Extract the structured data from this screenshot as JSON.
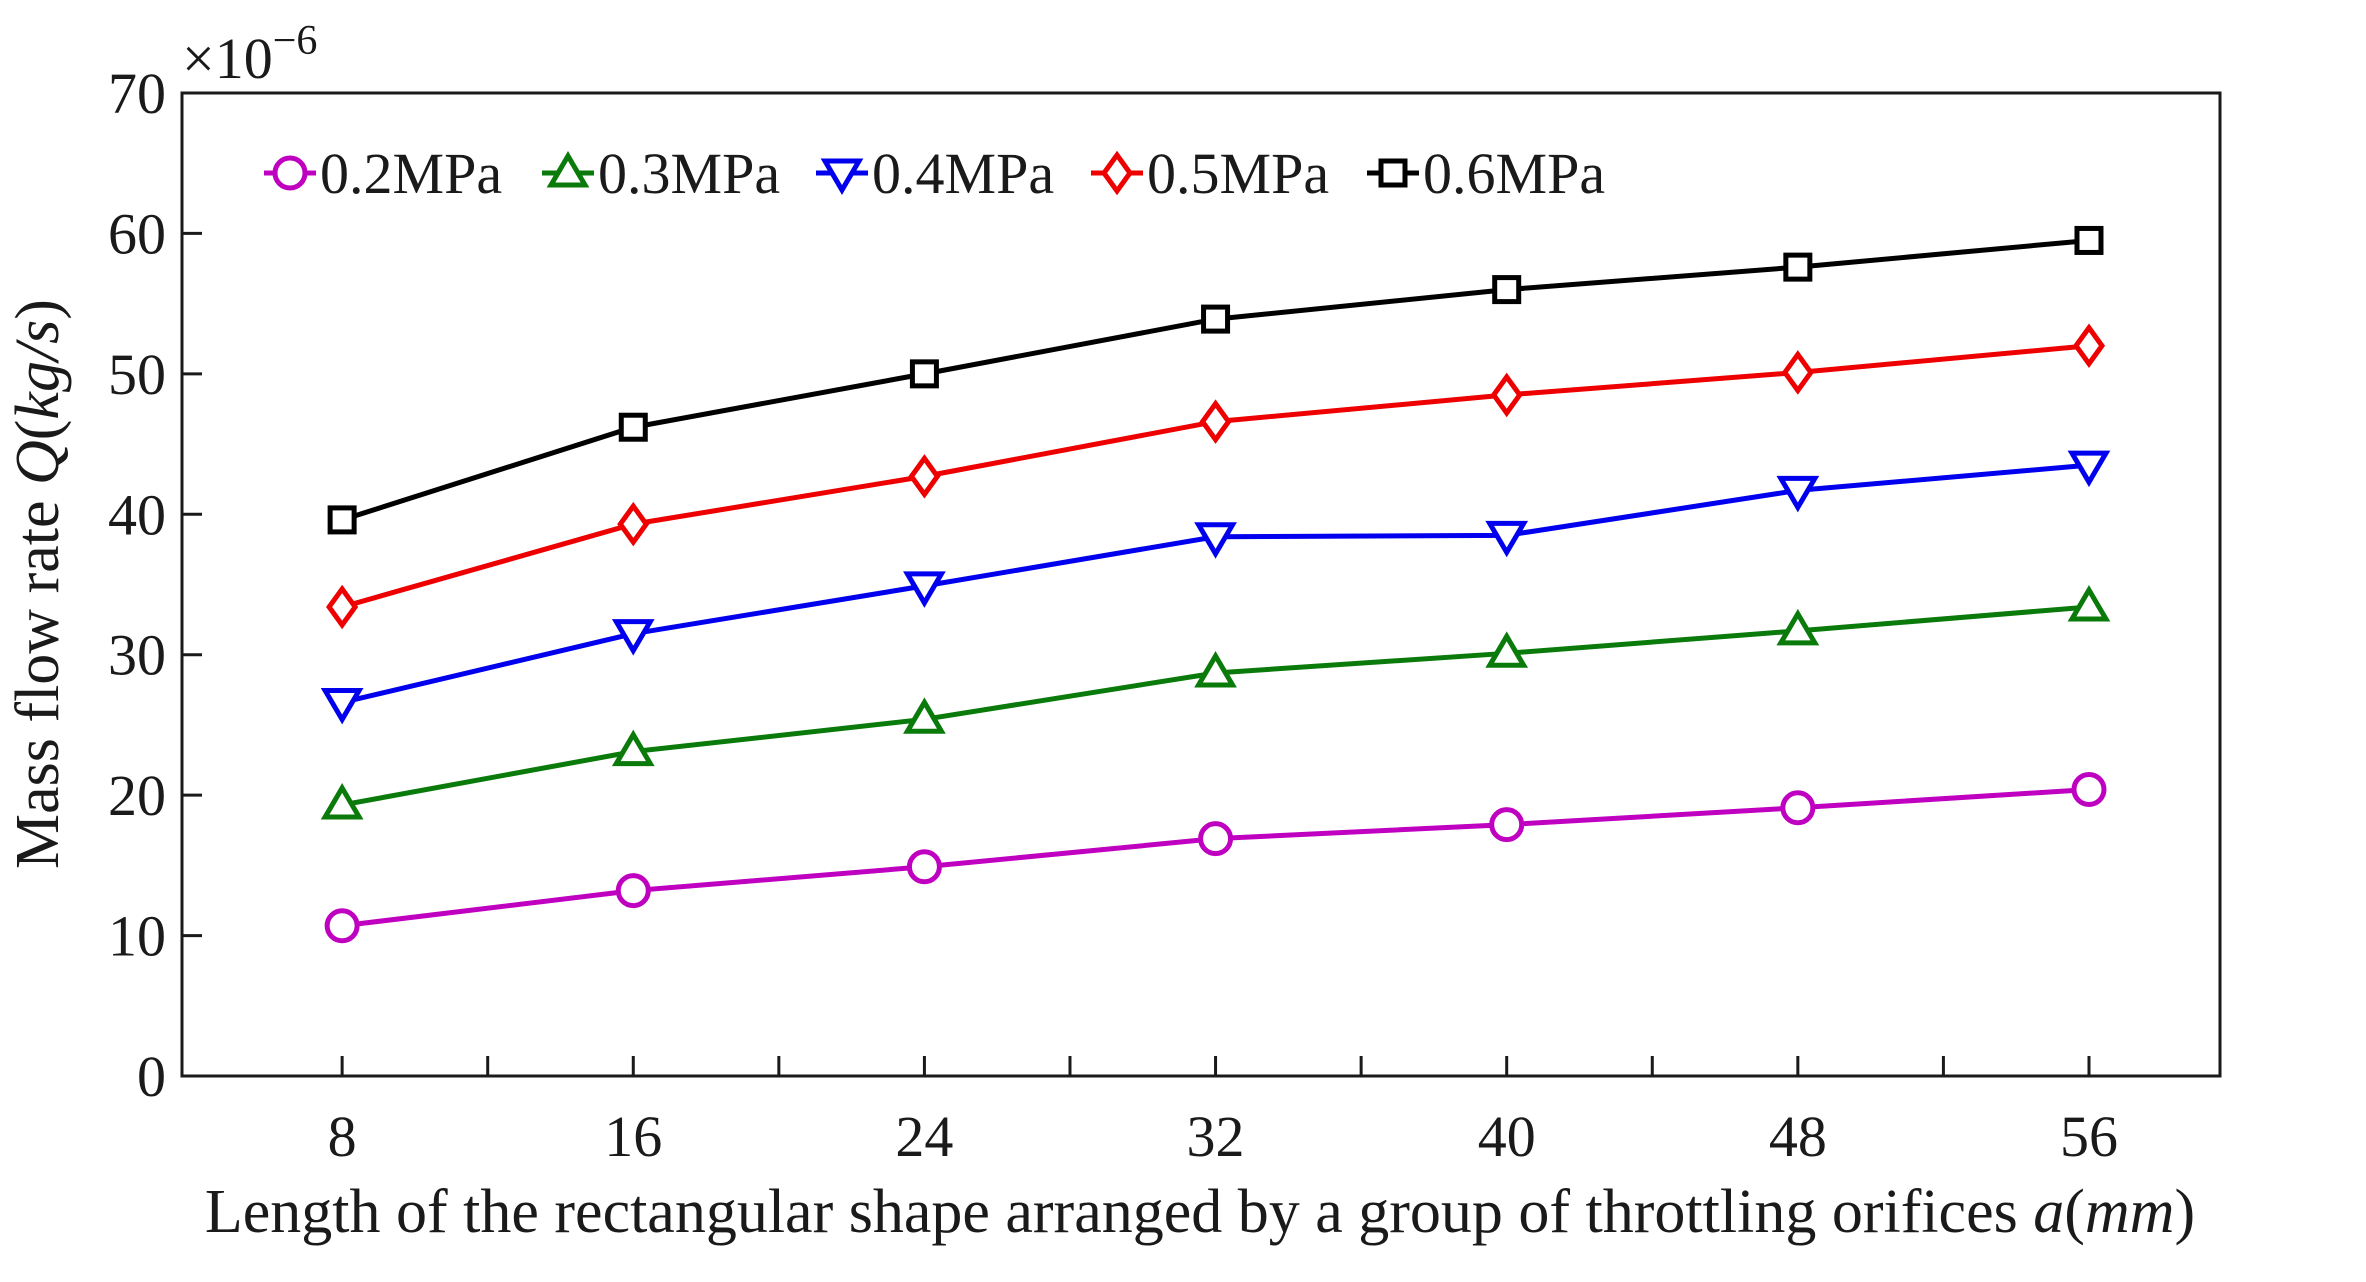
{
  "chart_data": {
    "type": "line",
    "title": "",
    "xlabel": {
      "main": "Length of the rectangular shape arranged by a group of throttling orifices ",
      "var": "a",
      "unit_open": "(",
      "unit": "mm",
      "unit_close": ")"
    },
    "ylabel": {
      "main": "Mass flow rate ",
      "var": "Q",
      "unit_open": "(",
      "unit": "kg/s",
      "unit_close": ")"
    },
    "y_multiplier": {
      "base": "×10",
      "exponent": "−6"
    },
    "x": [
      8,
      16,
      24,
      32,
      40,
      48,
      56
    ],
    "xlim": [
      3.6,
      59.6
    ],
    "ylim": [
      0,
      70
    ],
    "xticks": [
      8,
      12,
      16,
      20,
      24,
      28,
      32,
      36,
      40,
      44,
      48,
      52,
      56
    ],
    "xtick_labels": [
      "8",
      "",
      "16",
      "",
      "24",
      "",
      "32",
      "",
      "40",
      "",
      "48",
      "",
      "56"
    ],
    "yticks": [
      0,
      10,
      20,
      30,
      40,
      50,
      60,
      70
    ],
    "ytick_labels": [
      "0",
      "10",
      "20",
      "30",
      "40",
      "50",
      "60",
      "70"
    ],
    "grid": false,
    "legend_position": "top-left",
    "series": [
      {
        "name": "0.2MPa",
        "color": "#c000c0",
        "marker": "circle",
        "values": [
          10.7,
          13.2,
          14.9,
          16.9,
          17.9,
          19.1,
          20.4
        ]
      },
      {
        "name": "0.3MPa",
        "color": "#0a7a0a",
        "marker": "triangle-up",
        "values": [
          19.3,
          23.1,
          25.4,
          28.7,
          30.1,
          31.7,
          33.4
        ]
      },
      {
        "name": "0.4MPa",
        "color": "#0000ee",
        "marker": "triangle-down",
        "values": [
          26.6,
          31.5,
          34.9,
          38.4,
          38.5,
          41.7,
          43.5
        ]
      },
      {
        "name": "0.5MPa",
        "color": "#ee0000",
        "marker": "diamond",
        "values": [
          33.4,
          39.3,
          42.7,
          46.6,
          48.5,
          50.1,
          52.0
        ]
      },
      {
        "name": "0.6MPa",
        "color": "#000000",
        "marker": "square",
        "values": [
          39.6,
          46.2,
          50.0,
          53.9,
          56.0,
          57.6,
          59.5
        ]
      }
    ]
  }
}
